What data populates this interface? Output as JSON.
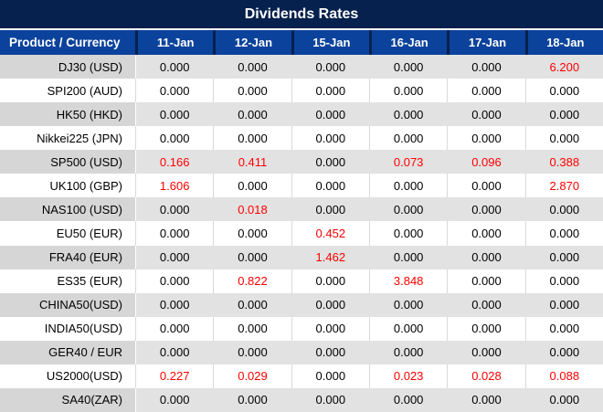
{
  "title": "Dividends Rates",
  "columns": {
    "product_label": "Product / Currency",
    "dates": [
      "11-Jan",
      "12-Jan",
      "15-Jan",
      "16-Jan",
      "17-Jan",
      "18-Jan"
    ]
  },
  "rows": [
    {
      "product": "DJ30 (USD)",
      "values": [
        "0.000",
        "0.000",
        "0.000",
        "0.000",
        "0.000",
        "6.200"
      ]
    },
    {
      "product": "SPI200 (AUD)",
      "values": [
        "0.000",
        "0.000",
        "0.000",
        "0.000",
        "0.000",
        "0.000"
      ]
    },
    {
      "product": "HK50 (HKD)",
      "values": [
        "0.000",
        "0.000",
        "0.000",
        "0.000",
        "0.000",
        "0.000"
      ]
    },
    {
      "product": "Nikkei225 (JPN)",
      "values": [
        "0.000",
        "0.000",
        "0.000",
        "0.000",
        "0.000",
        "0.000"
      ]
    },
    {
      "product": "SP500 (USD)",
      "values": [
        "0.166",
        "0.411",
        "0.000",
        "0.073",
        "0.096",
        "0.388"
      ]
    },
    {
      "product": "UK100 (GBP)",
      "values": [
        "1.606",
        "0.000",
        "0.000",
        "0.000",
        "0.000",
        "2.870"
      ]
    },
    {
      "product": "NAS100 (USD)",
      "values": [
        "0.000",
        "0.018",
        "0.000",
        "0.000",
        "0.000",
        "0.000"
      ]
    },
    {
      "product": "EU50 (EUR)",
      "values": [
        "0.000",
        "0.000",
        "0.452",
        "0.000",
        "0.000",
        "0.000"
      ]
    },
    {
      "product": "FRA40 (EUR)",
      "values": [
        "0.000",
        "0.000",
        "1.462",
        "0.000",
        "0.000",
        "0.000"
      ]
    },
    {
      "product": "ES35 (EUR)",
      "values": [
        "0.000",
        "0.822",
        "0.000",
        "3.848",
        "0.000",
        "0.000"
      ]
    },
    {
      "product": "CHINA50(USD)",
      "values": [
        "0.000",
        "0.000",
        "0.000",
        "0.000",
        "0.000",
        "0.000"
      ]
    },
    {
      "product": "INDIA50(USD)",
      "values": [
        "0.000",
        "0.000",
        "0.000",
        "0.000",
        "0.000",
        "0.000"
      ]
    },
    {
      "product": "GER40 / EUR",
      "values": [
        "0.000",
        "0.000",
        "0.000",
        "0.000",
        "0.000",
        "0.000"
      ]
    },
    {
      "product": "US2000(USD)",
      "values": [
        "0.227",
        "0.029",
        "0.000",
        "0.023",
        "0.028",
        "0.088"
      ]
    },
    {
      "product": "SA40(ZAR)",
      "values": [
        "0.000",
        "0.000",
        "0.000",
        "0.000",
        "0.000",
        "0.000"
      ]
    }
  ],
  "colors": {
    "title_bar_bg": "#06214e",
    "header_bg": "#0b429c",
    "header_text": "#ffffff",
    "row_gray_bg": "#e2e2e2",
    "product_gray_bg": "#d6d6d6",
    "row_white_bg": "#ffffff",
    "column_divider": "#d9d9d9",
    "value_default": "#000000",
    "value_nonzero": "#ff0000"
  }
}
